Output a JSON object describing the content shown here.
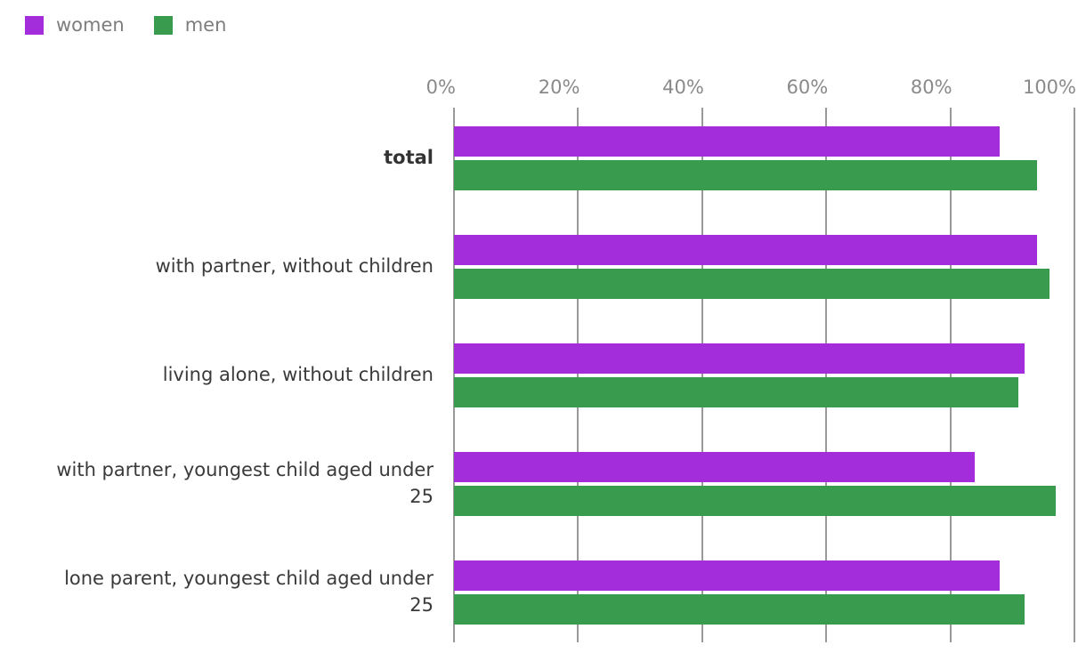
{
  "chart_data": {
    "type": "bar",
    "orientation": "horizontal",
    "title": "",
    "categories": [
      "total",
      "with partner, without children",
      "living alone, without children",
      "with partner, youngest child aged under 25",
      "lone parent, youngest child aged under 25"
    ],
    "emphasized_category_index": 0,
    "series": [
      {
        "name": "women",
        "color": "#a32cdb",
        "values": [
          88,
          94,
          92,
          84,
          88
        ]
      },
      {
        "name": "men",
        "color": "#389b4e",
        "values": [
          94,
          96,
          91,
          97,
          92
        ]
      }
    ],
    "x_ticks": [
      "0%",
      "20%",
      "40%",
      "60%",
      "80%",
      "100%"
    ],
    "xlim": [
      0,
      100
    ],
    "unit": "%",
    "grid": true,
    "legend_position": "top-left"
  },
  "legend": {
    "items": [
      {
        "label": "women",
        "color": "#a32cdb"
      },
      {
        "label": "men",
        "color": "#389b4e"
      }
    ]
  },
  "colors": {
    "background": "#ffffff",
    "gridline": "#999999",
    "axis_tick_label": "#8a8a8a",
    "category_label": "#3a3a3a",
    "legend_label": "#7d7d7d"
  }
}
